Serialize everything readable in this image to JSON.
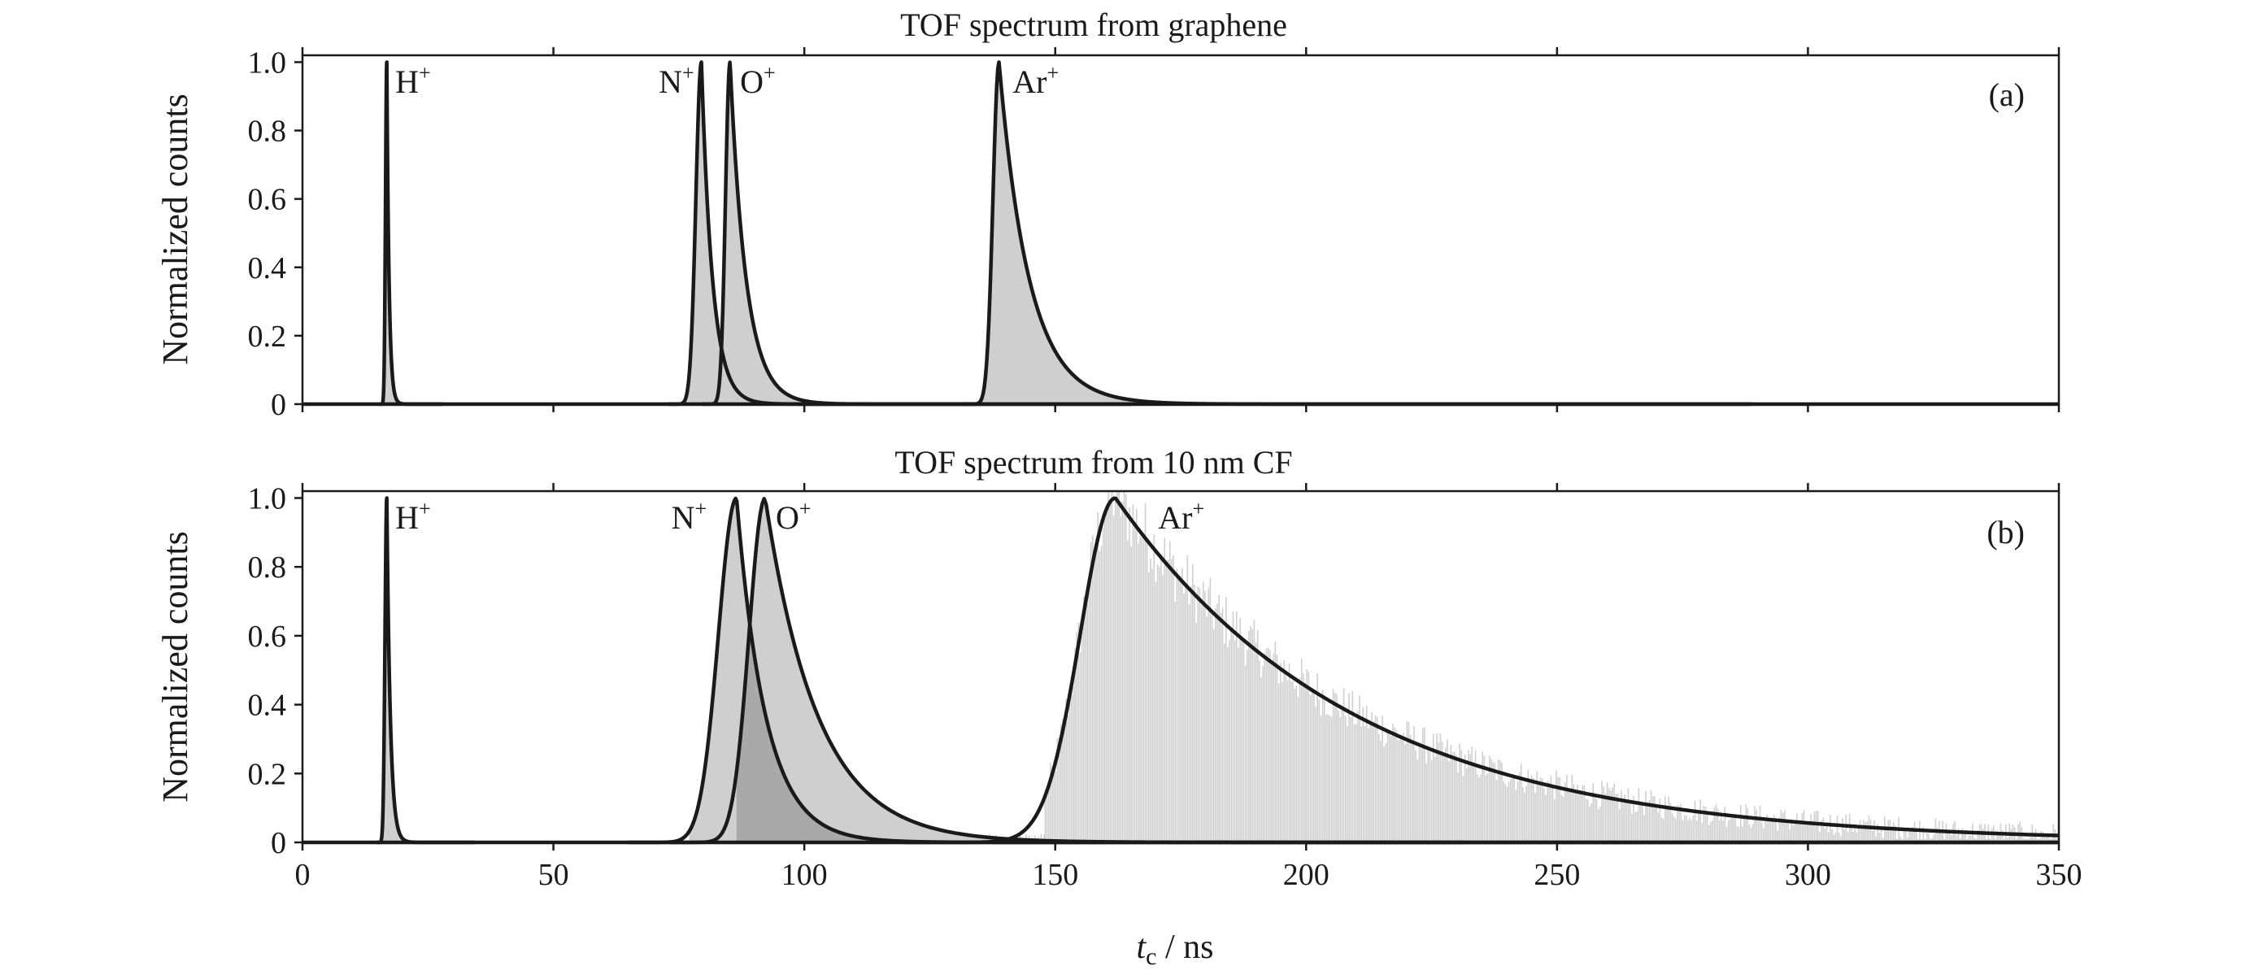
{
  "chart_data": {
    "xlabel_symbol": "t",
    "xlabel_sub": "c",
    "xlabel_unit": " / ns",
    "x_range": [
      0,
      350
    ],
    "x_ticks": [
      0,
      50,
      100,
      150,
      200,
      250,
      300,
      350
    ],
    "panels": [
      {
        "title": "TOF spectrum from graphene",
        "panel_label": "(a)",
        "type": "line",
        "ylabel": "Normalized counts",
        "ylim": [
          0,
          1.02
        ],
        "y_ticks": [
          "0",
          "0.2",
          "0.4",
          "0.6",
          "0.8",
          "1.0"
        ],
        "y_tick_values": [
          0,
          0.2,
          0.4,
          0.6,
          0.8,
          1.0
        ],
        "peaks": [
          {
            "ion": "H",
            "charge": "+",
            "center": 16.8,
            "sigma_left": 0.25,
            "tau_right": 0.45,
            "label_x": 18.5,
            "fill": true,
            "filled_data_start": 15.5
          },
          {
            "ion": "N",
            "charge": "+",
            "center": 79.5,
            "sigma_left": 1.1,
            "tau_right": 2.2,
            "label_x": 71.0,
            "fill": true,
            "filled_data_start": 74
          },
          {
            "ion": "O",
            "charge": "+",
            "center": 85.2,
            "sigma_left": 0.9,
            "tau_right": 3.2,
            "label_x": 87.2,
            "fill": true,
            "filled_data_start": 83
          },
          {
            "ion": "Ar",
            "charge": "+",
            "center": 138.8,
            "sigma_left": 1.2,
            "tau_right": 6.0,
            "label_x": 141.5,
            "fill": true,
            "filled_data_start": 135
          }
        ]
      },
      {
        "title": "TOF spectrum from 10 nm CF",
        "panel_label": "(b)",
        "type": "line",
        "ylabel": "Normalized counts",
        "ylim": [
          0,
          1.02
        ],
        "y_ticks": [
          "0",
          "0.2",
          "0.4",
          "0.6",
          "0.8",
          "1.0"
        ],
        "y_tick_values": [
          0,
          0.2,
          0.4,
          0.6,
          0.8,
          1.0
        ],
        "peaks": [
          {
            "ion": "H",
            "charge": "+",
            "center": 16.8,
            "sigma_left": 0.35,
            "tau_right": 0.7,
            "label_x": 18.5,
            "fill": true,
            "filled_data_start": 15.5
          },
          {
            "ion": "N",
            "charge": "+",
            "center": 86.5,
            "sigma_left": 3.6,
            "tau_right": 5.8,
            "label_x": 73.5,
            "fill": true,
            "filled_data_start": 77
          },
          {
            "ion": "O",
            "charge": "+",
            "center": 92.2,
            "sigma_left": 3.2,
            "tau_right": 10.5,
            "label_x": 94.3,
            "fill": true,
            "filled_data_start": 82
          },
          {
            "ion": "Ar",
            "charge": "+",
            "center": 162.0,
            "sigma_left": 7.0,
            "tau_right": 48.0,
            "label_x": 170.5,
            "fill": true,
            "filled_data_start": 148
          }
        ],
        "noisy_histogram": {
          "x_start": 148,
          "x_end": 350,
          "center": 162.0,
          "sigma_left": 7.0,
          "tau_right": 48.0
        }
      }
    ]
  }
}
